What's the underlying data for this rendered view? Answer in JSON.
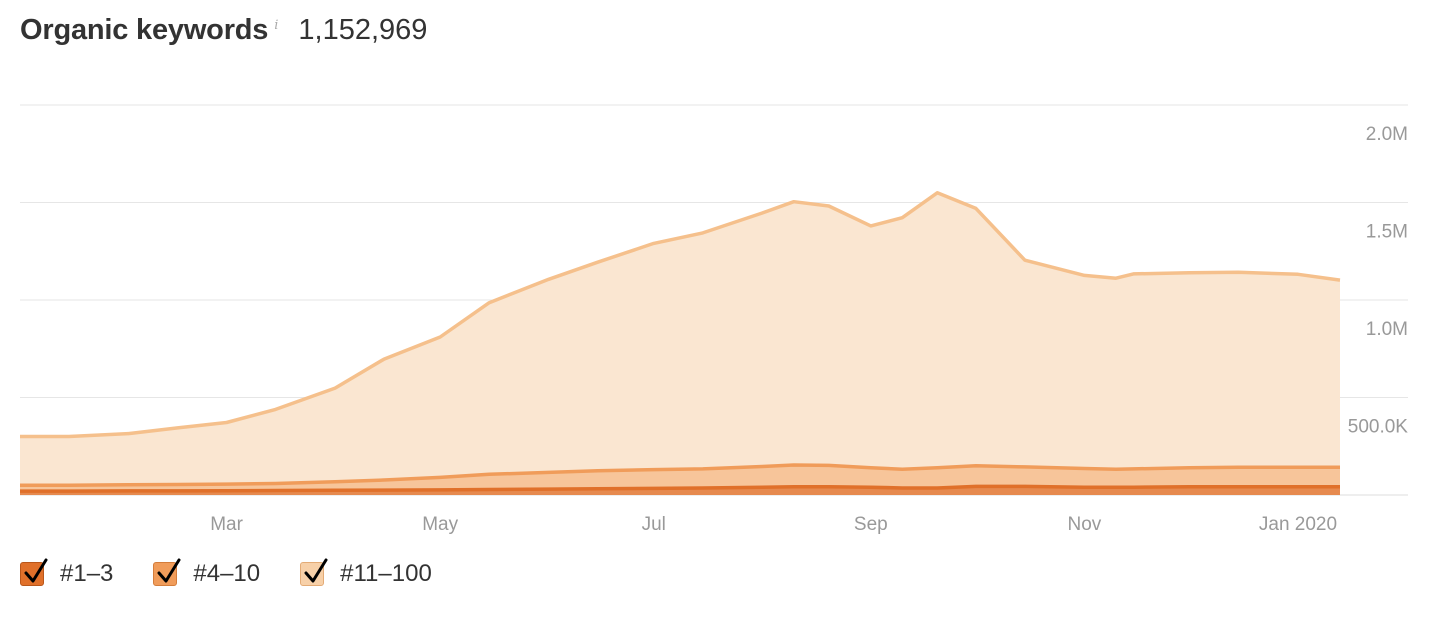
{
  "header": {
    "title": "Organic keywords",
    "info_icon": "info-icon",
    "total": "1,152,969"
  },
  "colors": {
    "pos_1_3": "#e0702a",
    "pos_4_10": "#f09c5a",
    "pos_11_100": "#f5c08c",
    "fill_1_3": "#e68a4f",
    "fill_4_10": "#f7c59a",
    "fill_11_100": "#fae6d1",
    "grid": "#e6e6e6",
    "axis_text": "#999999"
  },
  "legend": [
    {
      "label": "#1–3",
      "checked": true,
      "icon": "checkmark-icon"
    },
    {
      "label": "#4–10",
      "checked": true,
      "icon": "checkmark-icon"
    },
    {
      "label": "#11–100",
      "checked": true,
      "icon": "checkmark-icon"
    }
  ],
  "chart_data": {
    "type": "area",
    "stacked": true,
    "title": "Organic keywords",
    "xlabel": "",
    "ylabel": "",
    "y_ticks": [
      "500.0K",
      "1.0M",
      "1.5M",
      "2.0M"
    ],
    "y_tick_values": [
      500000,
      1000000,
      1500000,
      2000000
    ],
    "ylim": [
      0,
      2000000
    ],
    "x_tick_labels": [
      "Mar",
      "May",
      "Jul",
      "Sep",
      "Nov",
      "Jan 2020"
    ],
    "x_tick_dates": [
      "2019-03-01",
      "2019-05-01",
      "2019-07-01",
      "2019-09-01",
      "2019-11-01",
      "2020-01-01"
    ],
    "xlim": [
      "2019-01-01",
      "2020-01-13"
    ],
    "grid": true,
    "y_axis_position": "right",
    "legend_position": "bottom-left",
    "x": [
      "2019-01-01",
      "2019-01-15",
      "2019-02-01",
      "2019-02-15",
      "2019-03-01",
      "2019-03-15",
      "2019-04-01",
      "2019-04-15",
      "2019-05-01",
      "2019-05-15",
      "2019-06-01",
      "2019-06-15",
      "2019-07-01",
      "2019-07-15",
      "2019-08-01",
      "2019-08-10",
      "2019-08-20",
      "2019-09-01",
      "2019-09-10",
      "2019-09-20",
      "2019-10-01",
      "2019-10-15",
      "2019-11-01",
      "2019-11-10",
      "2019-11-15",
      "2019-12-01",
      "2019-12-15",
      "2020-01-01",
      "2020-01-13"
    ],
    "series": [
      {
        "name": "#1–3",
        "values": [
          20000,
          20000,
          21000,
          21000,
          22000,
          23000,
          24000,
          25000,
          26000,
          28000,
          30000,
          32000,
          34000,
          36000,
          40000,
          42000,
          42000,
          40000,
          36000,
          36000,
          44000,
          44000,
          40000,
          40000,
          40000,
          42000,
          42000,
          42000,
          42000
        ]
      },
      {
        "name": "#4–10",
        "values": [
          30000,
          30000,
          32000,
          33000,
          34000,
          36000,
          44000,
          52000,
          64000,
          78000,
          86000,
          92000,
          96000,
          98000,
          106000,
          112000,
          110000,
          100000,
          96000,
          104000,
          106000,
          100000,
          96000,
          92000,
          94000,
          98000,
          100000,
          100000,
          100000
        ]
      },
      {
        "name": "#11–100",
        "values": [
          250000,
          250000,
          262000,
          290000,
          316000,
          380000,
          480000,
          620000,
          720000,
          880000,
          990000,
          1070000,
          1160000,
          1210000,
          1300000,
          1350000,
          1330000,
          1240000,
          1290000,
          1410000,
          1320000,
          1060000,
          990000,
          980000,
          1000000,
          1000000,
          1000000,
          990000,
          960000
        ]
      }
    ]
  }
}
